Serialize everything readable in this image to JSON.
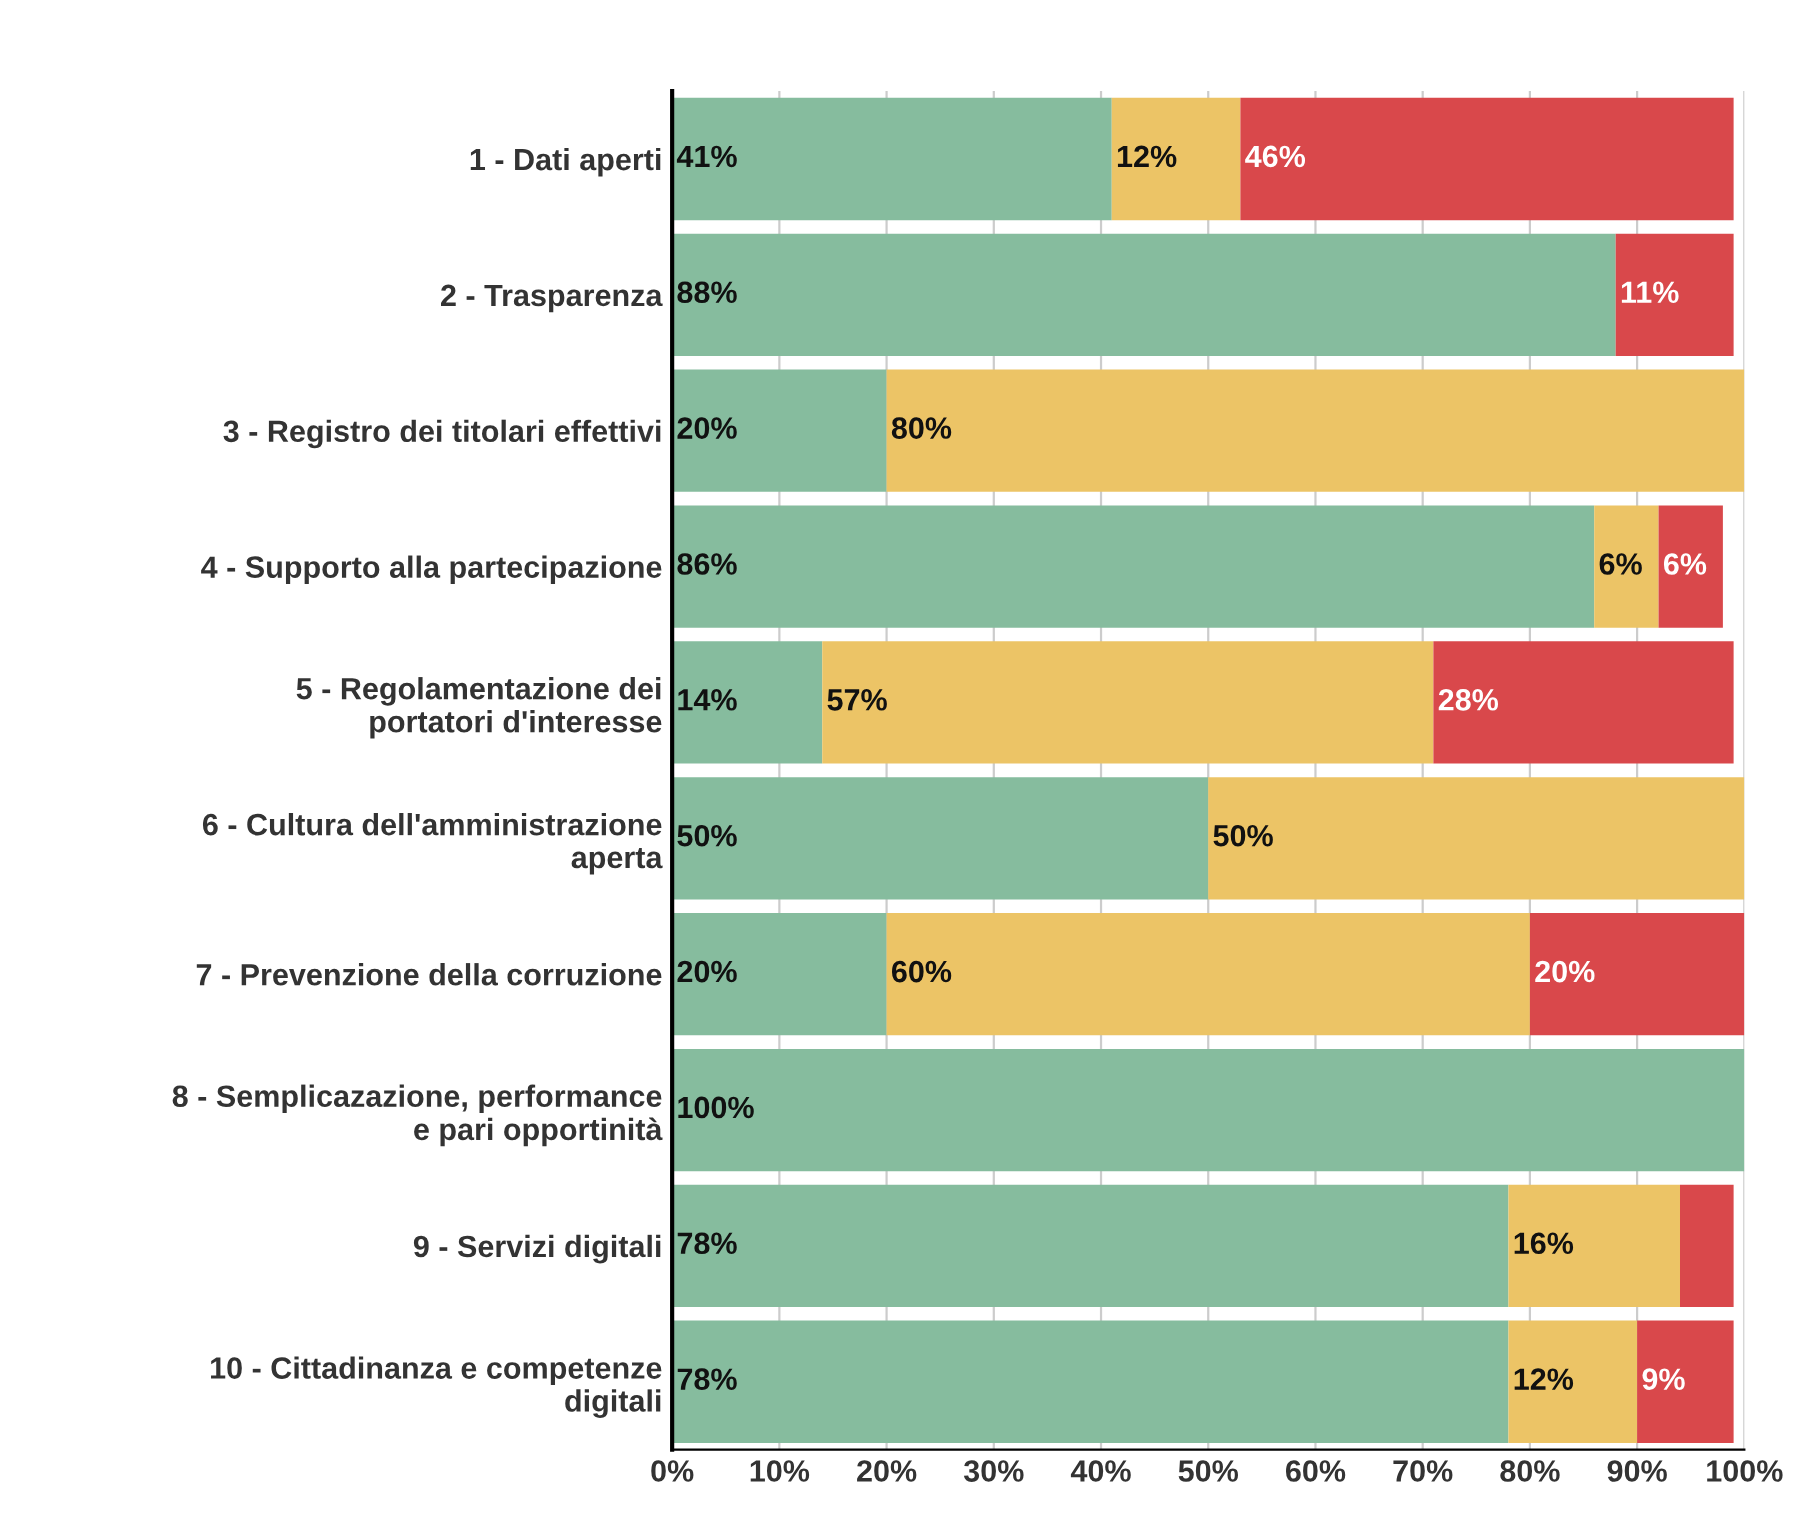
{
  "chart_data": {
    "type": "bar",
    "orientation": "horizontal",
    "stacked": true,
    "categories": [
      "1 - Dati aperti",
      "2 - Trasparenza",
      "3 - Registro dei titolari effettivi",
      "4 - Supporto alla partecipazione",
      "5 - Regolamentazione dei\nportatori d'interesse",
      "6 - Cultura dell'amministrazione\naperta",
      "7 - Prevenzione della corruzione",
      "8 - Semplicazazione, performance\ne pari opportinità",
      "9 - Servizi digitali",
      "10 - Cittadinanza e competenze\ndigitali"
    ],
    "series": [
      {
        "color": "#86bc9e",
        "values": [
          41,
          88,
          20,
          86,
          14,
          50,
          20,
          100,
          78,
          78
        ],
        "value_labels": [
          "41%",
          "88%",
          "20%",
          "86%",
          "14%",
          "50%",
          "20%",
          "100%",
          "78%",
          "78%"
        ]
      },
      {
        "color": "#ecc466",
        "values": [
          12,
          0,
          80,
          6,
          57,
          50,
          60,
          0,
          16,
          12
        ],
        "value_labels": [
          "12%",
          null,
          "80%",
          "6%",
          "57%",
          "50%",
          "60%",
          null,
          "16%",
          "12%"
        ]
      },
      {
        "color": "#d9484b",
        "values": [
          46,
          11,
          0,
          6,
          28,
          0,
          20,
          0,
          5,
          9
        ],
        "value_labels": [
          "46%",
          "11%",
          null,
          "6%",
          "28%",
          null,
          "20%",
          null,
          null,
          "9%"
        ]
      }
    ],
    "xlim": [
      0,
      100
    ],
    "xticks": [
      {
        "value": 0,
        "label": "0%"
      },
      {
        "value": 10,
        "label": "10%"
      },
      {
        "value": 20,
        "label": "20%"
      },
      {
        "value": 30,
        "label": "30%"
      },
      {
        "value": 40,
        "label": "40%"
      },
      {
        "value": 50,
        "label": "50%"
      },
      {
        "value": 60,
        "label": "60%"
      },
      {
        "value": 70,
        "label": "70%"
      },
      {
        "value": 80,
        "label": "80%"
      },
      {
        "value": 90,
        "label": "90%"
      },
      {
        "value": 100,
        "label": "100%"
      }
    ],
    "grid": "x"
  }
}
